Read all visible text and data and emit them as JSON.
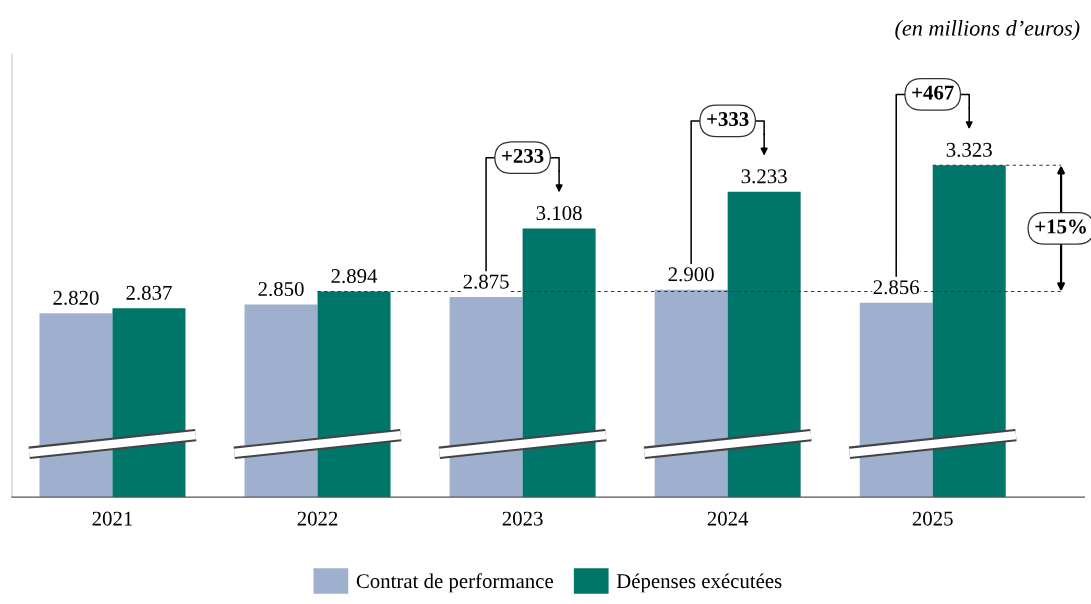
{
  "chart_data": {
    "type": "bar",
    "categories": [
      "2021",
      "2022",
      "2023",
      "2024",
      "2025"
    ],
    "series": [
      {
        "name": "Contrat de performance",
        "color": "#9fb0cf",
        "values": [
          2820,
          2850,
          2875,
          2900,
          2856
        ],
        "value_labels": [
          "2.820",
          "2.850",
          "2.875",
          "2.900",
          "2.856"
        ]
      },
      {
        "name": "Dépenses exécutées",
        "color": "#00756a",
        "values": [
          2837,
          2894,
          3108,
          3233,
          3323
        ],
        "value_labels": [
          "2.837",
          "2.894",
          "3.108",
          "3.233",
          "3.323"
        ]
      }
    ],
    "ylim": [
      2195,
      3700
    ],
    "tick_labels": "x",
    "legend": "bottom",
    "grid": false,
    "ref_lines": [
      {
        "axis": "y",
        "value": 2894,
        "line_style": "dashed",
        "color": "#333333"
      },
      {
        "axis": "y",
        "value": 3323,
        "line_style": "dashed",
        "color": "#333333"
      }
    ],
    "annotations": [
      "(en millions d’euros)",
      "+233",
      "+333",
      "+467",
      "+15%"
    ]
  }
}
